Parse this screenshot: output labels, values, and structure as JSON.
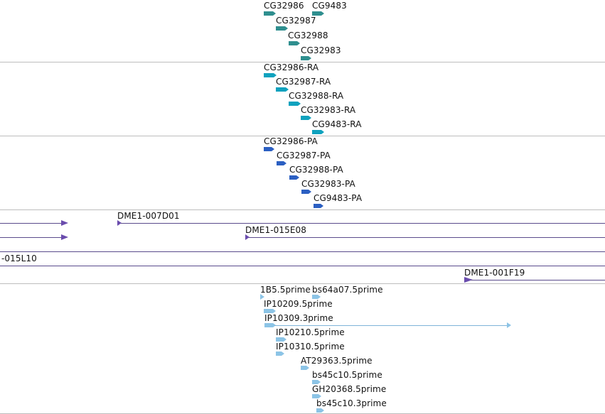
{
  "colors": {
    "gene": "#2f8f8f",
    "transcript": "#0fa2be",
    "protein": "#2b5fc2",
    "clone": "#6a4cad",
    "clone_line": "#5a4b8c",
    "est": "#8cc4e6",
    "est_line": "#7fb4d8",
    "divider": "#bdbdbd"
  },
  "tracks": {
    "genes": [
      {
        "label": "CG32986"
      },
      {
        "label": "CG9483"
      },
      {
        "label": "CG32987"
      },
      {
        "label": "CG32988"
      },
      {
        "label": "CG32983"
      }
    ],
    "transcripts": [
      {
        "label": "CG32986-RA"
      },
      {
        "label": "CG32987-RA"
      },
      {
        "label": "CG32988-RA"
      },
      {
        "label": "CG32983-RA"
      },
      {
        "label": "CG9483-RA"
      }
    ],
    "proteins": [
      {
        "label": "CG32986-PA"
      },
      {
        "label": "CG32987-PA"
      },
      {
        "label": "CG32988-PA"
      },
      {
        "label": "CG32983-PA"
      },
      {
        "label": "CG9483-PA"
      }
    ],
    "clones": [
      {
        "label": ""
      },
      {
        "label": "DME1-007D01"
      },
      {
        "label": ""
      },
      {
        "label": "DME1-015E08"
      },
      {
        "label": ""
      },
      {
        "label": "-015L10"
      },
      {
        "label": ""
      },
      {
        "label": "DME1-001F19"
      }
    ],
    "ests": [
      {
        "label": "1B5.5prime"
      },
      {
        "label": "bs64a07.5prime"
      },
      {
        "label": "IP10209.5prime"
      },
      {
        "label": "IP10309.3prime"
      },
      {
        "label": "IP10210.5prime"
      },
      {
        "label": "IP10310.5prime"
      },
      {
        "label": "AT29363.5prime"
      },
      {
        "label": "bs45c10.5prime"
      },
      {
        "label": "GH20368.5prime"
      },
      {
        "label": "bs45c10.3prime"
      }
    ]
  }
}
